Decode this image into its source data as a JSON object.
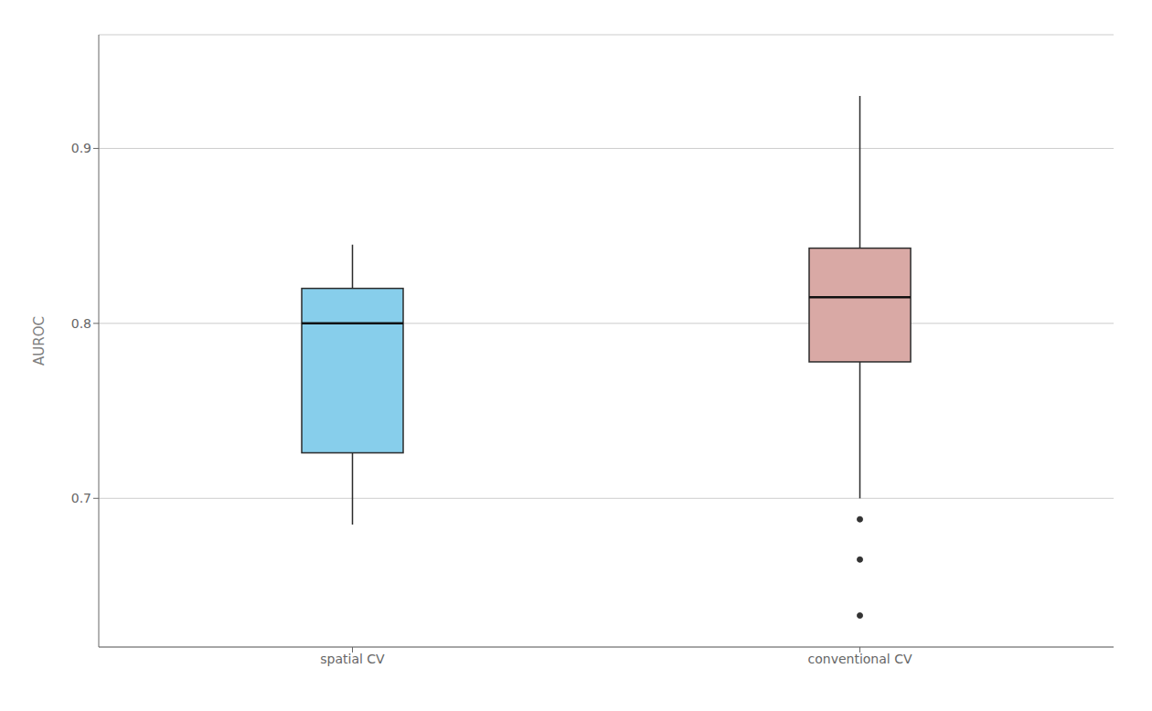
{
  "chart_data": {
    "type": "box",
    "categories": [
      "spatial CV",
      "conventional CV"
    ],
    "colors": [
      "#87CEEB",
      "#D9A9A5"
    ],
    "ylabel": "AUROC",
    "ylim": [
      0.615,
      0.965
    ],
    "yticks": [
      0.7,
      0.8,
      0.9
    ],
    "grid": true,
    "boxes": [
      {
        "q1": 0.726,
        "median": 0.8,
        "q3": 0.82,
        "whisker_low": 0.685,
        "whisker_high": 0.845,
        "outliers": []
      },
      {
        "q1": 0.778,
        "median": 0.815,
        "q3": 0.843,
        "whisker_low": 0.7,
        "whisker_high": 0.93,
        "outliers": [
          0.688,
          0.665,
          0.633
        ]
      }
    ]
  }
}
